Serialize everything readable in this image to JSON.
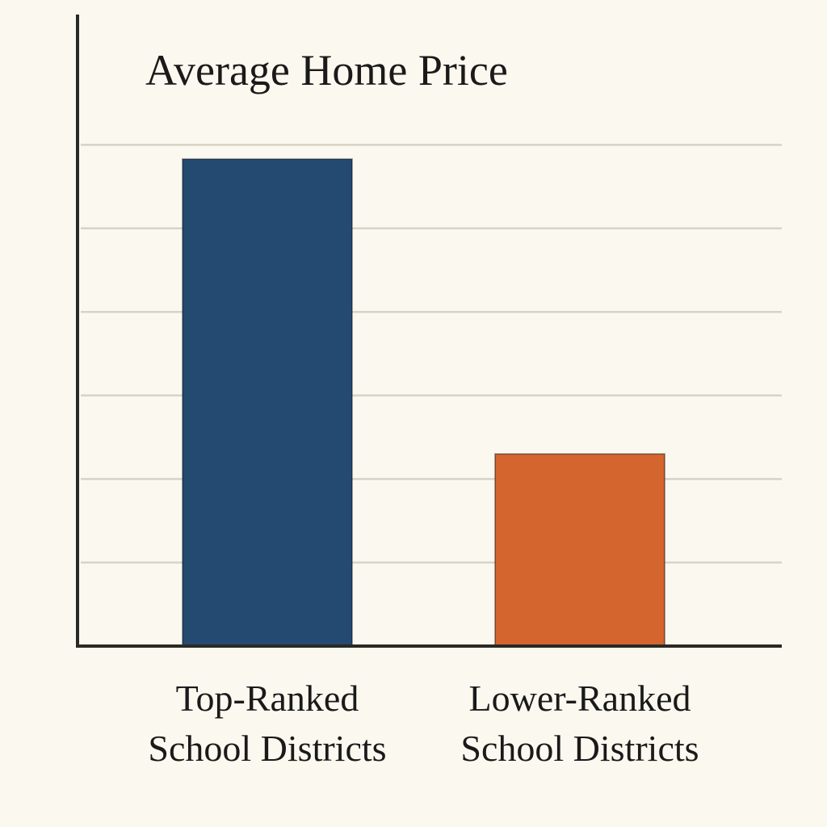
{
  "chart_data": {
    "type": "bar",
    "title": "Average Home Price",
    "categories": [
      "Top-Ranked\nSchool Districts",
      "Lower-Ranked\nSchool Districts"
    ],
    "values": [
      5.83,
      2.3
    ],
    "colors": [
      "#244a72",
      "#d4652f"
    ],
    "ylim": [
      0,
      7.56
    ],
    "yticks": [
      1,
      2,
      3,
      4,
      5,
      6
    ],
    "grid": true
  }
}
